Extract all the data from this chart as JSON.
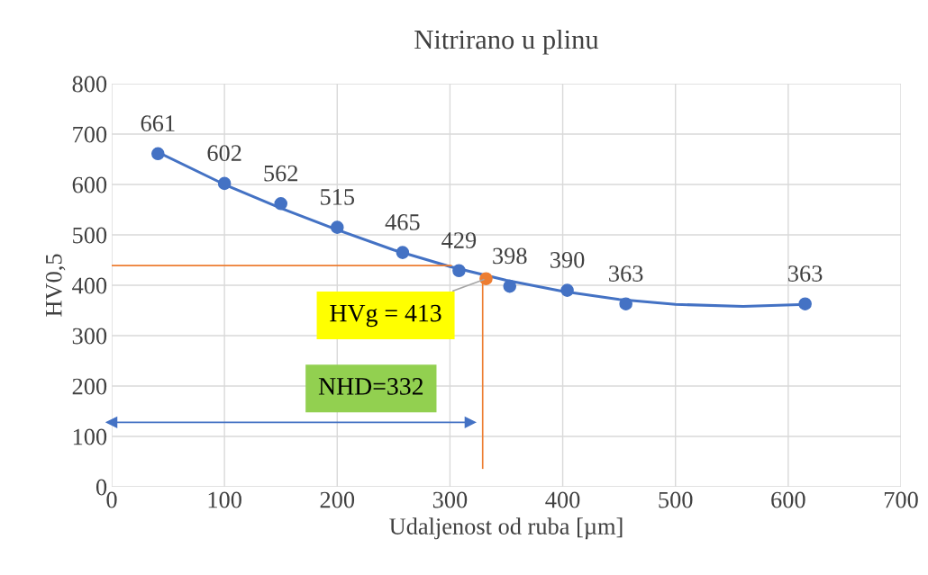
{
  "chart_data": {
    "type": "scatter",
    "title": "Nitrirano u plinu",
    "xlabel": "Udaljenost od ruba [µm]",
    "ylabel": "HV0,5",
    "xlim": [
      0,
      700
    ],
    "xticks": [
      0,
      100,
      200,
      300,
      400,
      500,
      600,
      700
    ],
    "ylim": [
      0,
      800
    ],
    "yticks": [
      0,
      100,
      200,
      300,
      400,
      500,
      600,
      700,
      800
    ],
    "grid": true,
    "marker": "circle",
    "series": [
      {
        "color": "#4472c4",
        "x": [
          41,
          100,
          150,
          200,
          258,
          308,
          353,
          404,
          456,
          615
        ],
        "values": [
          661,
          602,
          562,
          515,
          465,
          429,
          398,
          390,
          363,
          363
        ],
        "value_labels": [
          "661",
          "602",
          "562",
          "515",
          "465",
          "429",
          "398",
          "390",
          "363",
          "363"
        ]
      },
      {
        "type": "line",
        "color": "#4472c4",
        "marker": "none",
        "x": [
          40,
          100,
          150,
          200,
          250,
          300,
          350,
          400,
          450,
          500,
          560,
          615
        ],
        "values": [
          665,
          600,
          553,
          510,
          470,
          437,
          410,
          388,
          372,
          362,
          358,
          362
        ]
      },
      {
        "color": "#ed7d31",
        "x": [
          332
        ],
        "values": [
          413
        ]
      },
      {
        "type": "line",
        "color": "#ed7d31",
        "marker": "none",
        "x": [
          0,
          301
        ],
        "values": [
          439,
          439
        ]
      },
      {
        "type": "line",
        "color": "#ed7d31",
        "marker": "none",
        "x": [
          329,
          329
        ],
        "values": [
          413,
          37
        ]
      },
      {
        "type": "line",
        "color": "#4472c4",
        "marker": "triangle",
        "x": [
          0,
          318
        ],
        "values": [
          128,
          128
        ]
      }
    ],
    "annotations": [
      {
        "text": "HVg = 413",
        "x": 332,
        "y": 413
      },
      "NHD=332"
    ]
  }
}
